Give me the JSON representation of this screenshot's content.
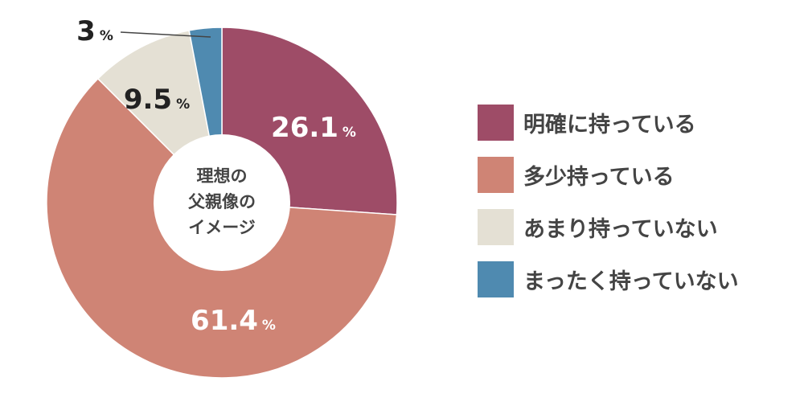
{
  "chart_data": {
    "type": "pie",
    "donut": true,
    "center_label_lines": [
      "理想の",
      "父親像の",
      "イメージ"
    ],
    "slices": [
      {
        "label": "明確に持っている",
        "value": 26.1,
        "display": "26.1",
        "color": "#9e4c67",
        "text_color": "#ffffff"
      },
      {
        "label": "多少持っている",
        "value": 61.4,
        "display": "61.4",
        "color": "#cf8475",
        "text_color": "#ffffff"
      },
      {
        "label": "あまり持っていない",
        "value": 9.5,
        "display": "9.5",
        "color": "#e4e0d4",
        "text_color": "#222222"
      },
      {
        "label": "まったく持っていない",
        "value": 3,
        "display": "3",
        "color": "#4f8ab0",
        "text_color": "#222222"
      }
    ],
    "percent_sign": "%",
    "legend_position": "right"
  }
}
